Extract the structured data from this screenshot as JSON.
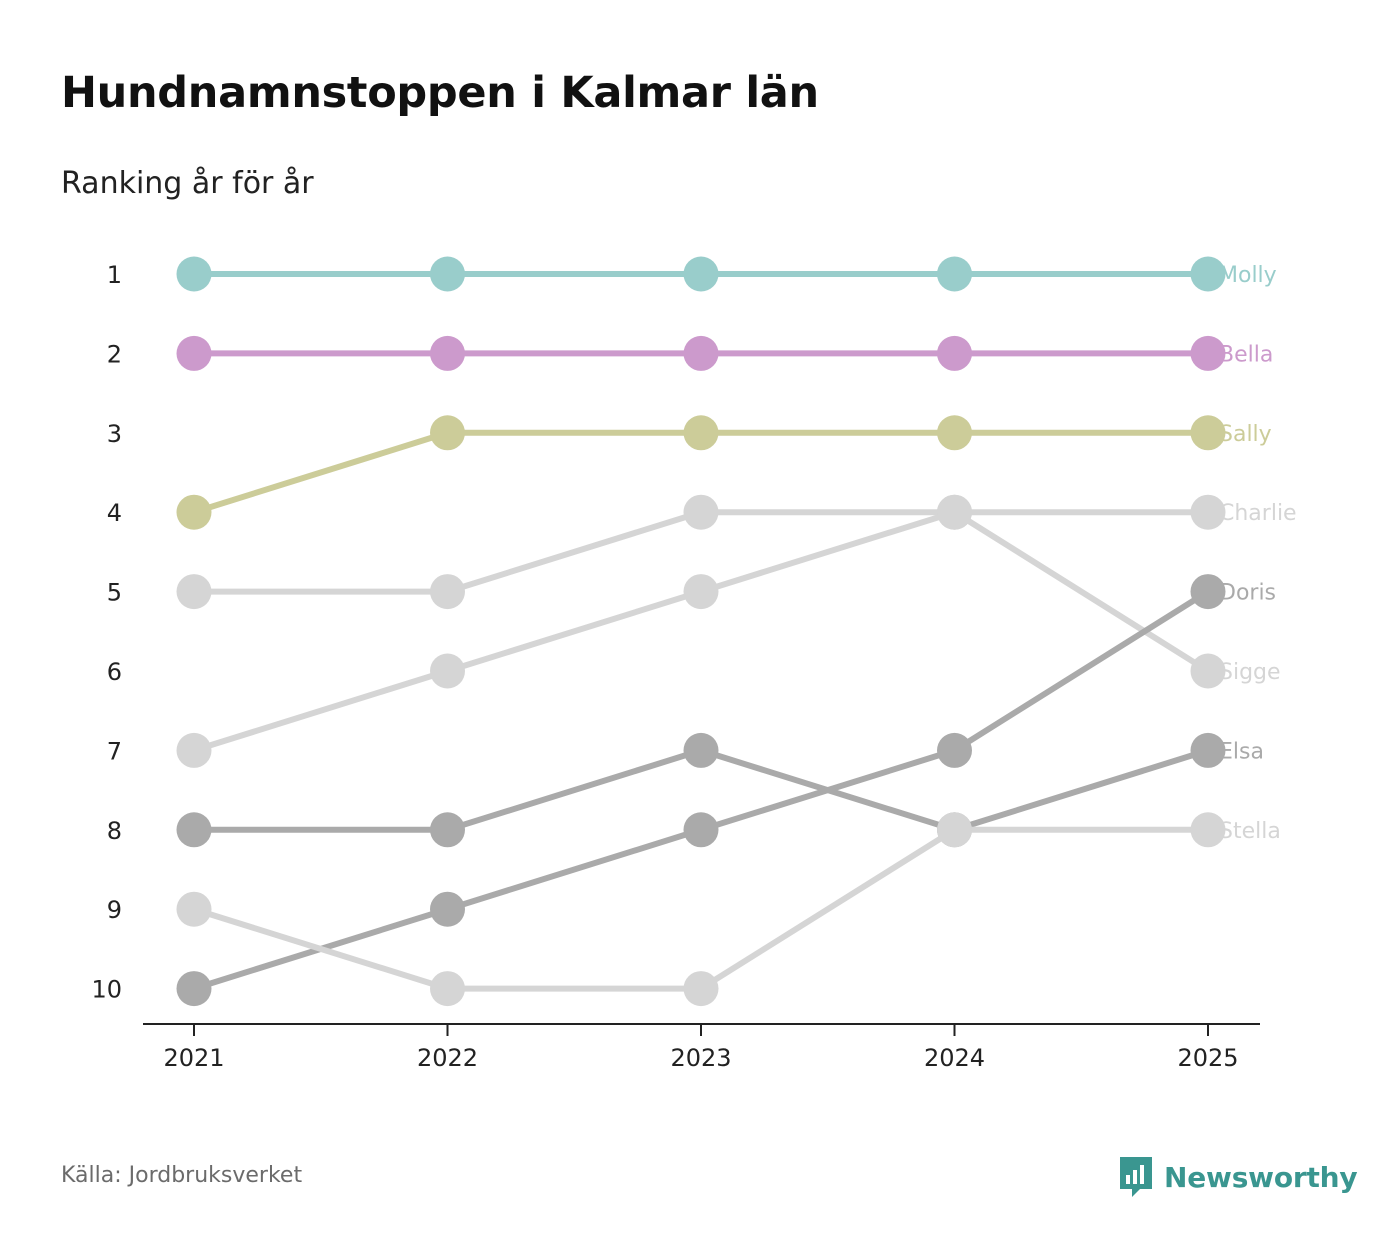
{
  "header": {
    "title": "Hundnamnstoppen i Kalmar län",
    "subtitle": "Ranking år för år"
  },
  "footer": {
    "source": "Källa: Jordbruksverket",
    "brand": "Newsworthy",
    "brand_icon": "newsworthy-logo-icon",
    "brand_color": "#3a9690"
  },
  "chart_data": {
    "type": "line",
    "title": "Hundnamnstoppen i Kalmar län",
    "subtitle": "Ranking år för år",
    "xlabel": "",
    "ylabel": "",
    "x": [
      "2021",
      "2022",
      "2023",
      "2024",
      "2025"
    ],
    "y_ticks": [
      "1",
      "2",
      "3",
      "4",
      "5",
      "6",
      "7",
      "8",
      "9",
      "10"
    ],
    "ylim": [
      1,
      10
    ],
    "y_inverted": true,
    "grid": false,
    "series": [
      {
        "name": "Molly",
        "values": [
          1,
          1,
          1,
          1,
          1
        ],
        "color": "#99cdcb"
      },
      {
        "name": "Bella",
        "values": [
          2,
          2,
          2,
          2,
          2
        ],
        "color": "#cc9acc"
      },
      {
        "name": "Sally",
        "values": [
          4,
          3,
          3,
          3,
          3
        ],
        "color": "#cccc99"
      },
      {
        "name": "Charlie",
        "values": [
          5,
          5,
          4,
          4,
          4
        ],
        "color": "#d5d5d5"
      },
      {
        "name": "Sigge",
        "values": [
          7,
          6,
          5,
          4,
          6
        ],
        "color": "#d5d5d5"
      },
      {
        "name": "Doris",
        "values": [
          10,
          9,
          8,
          7,
          5
        ],
        "color": "#aaaaaa"
      },
      {
        "name": "Elsa",
        "values": [
          8,
          8,
          7,
          8,
          7
        ],
        "color": "#aaaaaa"
      },
      {
        "name": "Stella",
        "values": [
          9,
          10,
          10,
          8,
          8
        ],
        "color": "#d5d5d5"
      }
    ]
  }
}
